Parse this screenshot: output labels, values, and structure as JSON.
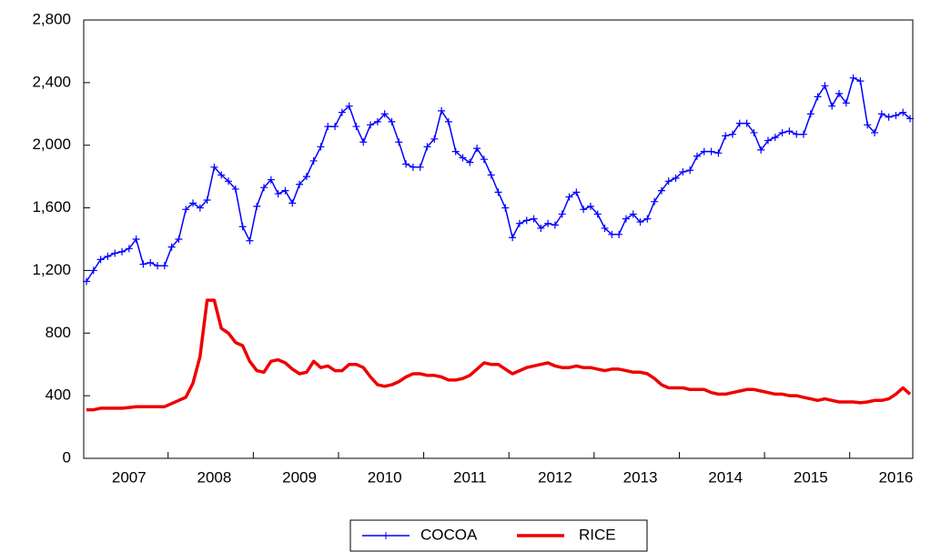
{
  "chart_data": {
    "type": "line",
    "categories": [
      null,
      null,
      null,
      null,
      null,
      null,
      "2007",
      null,
      null,
      null,
      null,
      null,
      null,
      null,
      null,
      null,
      null,
      null,
      "2008",
      null,
      null,
      null,
      null,
      null,
      null,
      null,
      null,
      null,
      null,
      null,
      "2009",
      null,
      null,
      null,
      null,
      null,
      null,
      null,
      null,
      null,
      null,
      null,
      "2010",
      null,
      null,
      null,
      null,
      null,
      null,
      null,
      null,
      null,
      null,
      null,
      "2011",
      null,
      null,
      null,
      null,
      null,
      null,
      null,
      null,
      null,
      null,
      null,
      "2012",
      null,
      null,
      null,
      null,
      null,
      null,
      null,
      null,
      null,
      null,
      null,
      "2013",
      null,
      null,
      null,
      null,
      null,
      null,
      null,
      null,
      null,
      null,
      null,
      "2014",
      null,
      null,
      null,
      null,
      null,
      null,
      null,
      null,
      null,
      null,
      null,
      "2015",
      null,
      null,
      null,
      null,
      null,
      null,
      null,
      null,
      null,
      null,
      null,
      "2016",
      null,
      null
    ],
    "series": [
      {
        "name": "COCOA",
        "color": "#0000ff",
        "marker": "+",
        "line_width": 1.5,
        "values": [
          1130,
          1200,
          1270,
          1290,
          1310,
          1320,
          1340,
          1400,
          1240,
          1250,
          1230,
          1230,
          1350,
          1400,
          1590,
          1630,
          1600,
          1650,
          1860,
          1810,
          1770,
          1720,
          1480,
          1390,
          1610,
          1730,
          1780,
          1690,
          1710,
          1630,
          1750,
          1800,
          1900,
          1990,
          2120,
          2120,
          2210,
          2250,
          2120,
          2020,
          2130,
          2150,
          2200,
          2150,
          2020,
          1880,
          1860,
          1860,
          1990,
          2040,
          2220,
          2150,
          1960,
          1920,
          1890,
          1980,
          1910,
          1810,
          1700,
          1600,
          1410,
          1500,
          1520,
          1530,
          1470,
          1500,
          1490,
          1560,
          1670,
          1700,
          1590,
          1610,
          1560,
          1470,
          1430,
          1430,
          1530,
          1560,
          1510,
          1530,
          1640,
          1710,
          1770,
          1790,
          1830,
          1840,
          1930,
          1960,
          1960,
          1950,
          2060,
          2070,
          2140,
          2140,
          2080,
          1970,
          2030,
          2050,
          2080,
          2090,
          2070,
          2070,
          2200,
          2310,
          2380,
          2250,
          2330,
          2270,
          2430,
          2410,
          2130,
          2080,
          2200,
          2180,
          2190,
          2210,
          2170
        ]
      },
      {
        "name": "RICE",
        "color": "#ee0000",
        "line_width": 3.5,
        "values": [
          310,
          310,
          320,
          320,
          320,
          320,
          325,
          330,
          330,
          330,
          330,
          330,
          350,
          370,
          390,
          480,
          650,
          1010,
          1010,
          830,
          800,
          740,
          720,
          620,
          560,
          550,
          620,
          630,
          610,
          570,
          540,
          550,
          620,
          580,
          590,
          560,
          560,
          600,
          600,
          580,
          520,
          470,
          460,
          470,
          490,
          520,
          540,
          540,
          530,
          530,
          520,
          500,
          500,
          510,
          530,
          570,
          610,
          600,
          600,
          570,
          540,
          560,
          580,
          590,
          600,
          610,
          590,
          580,
          580,
          590,
          580,
          580,
          570,
          560,
          570,
          570,
          560,
          550,
          550,
          540,
          510,
          470,
          450,
          450,
          450,
          440,
          440,
          440,
          420,
          410,
          410,
          420,
          430,
          440,
          440,
          430,
          420,
          410,
          410,
          400,
          400,
          390,
          380,
          370,
          380,
          370,
          360,
          360,
          360,
          355,
          360,
          370,
          370,
          380,
          410,
          450,
          410
        ]
      }
    ],
    "ylim": [
      0,
      2800
    ],
    "yticks": [
      0,
      400,
      800,
      {
        "value": 1200,
        "label": "1,200"
      },
      {
        "value": 1600,
        "label": "1,600"
      },
      {
        "value": 2000,
        "label": "2,000"
      },
      {
        "value": 2400,
        "label": "2,400"
      },
      {
        "value": 2800,
        "label": "2,800"
      }
    ],
    "grid": false,
    "legend": "bottom"
  }
}
